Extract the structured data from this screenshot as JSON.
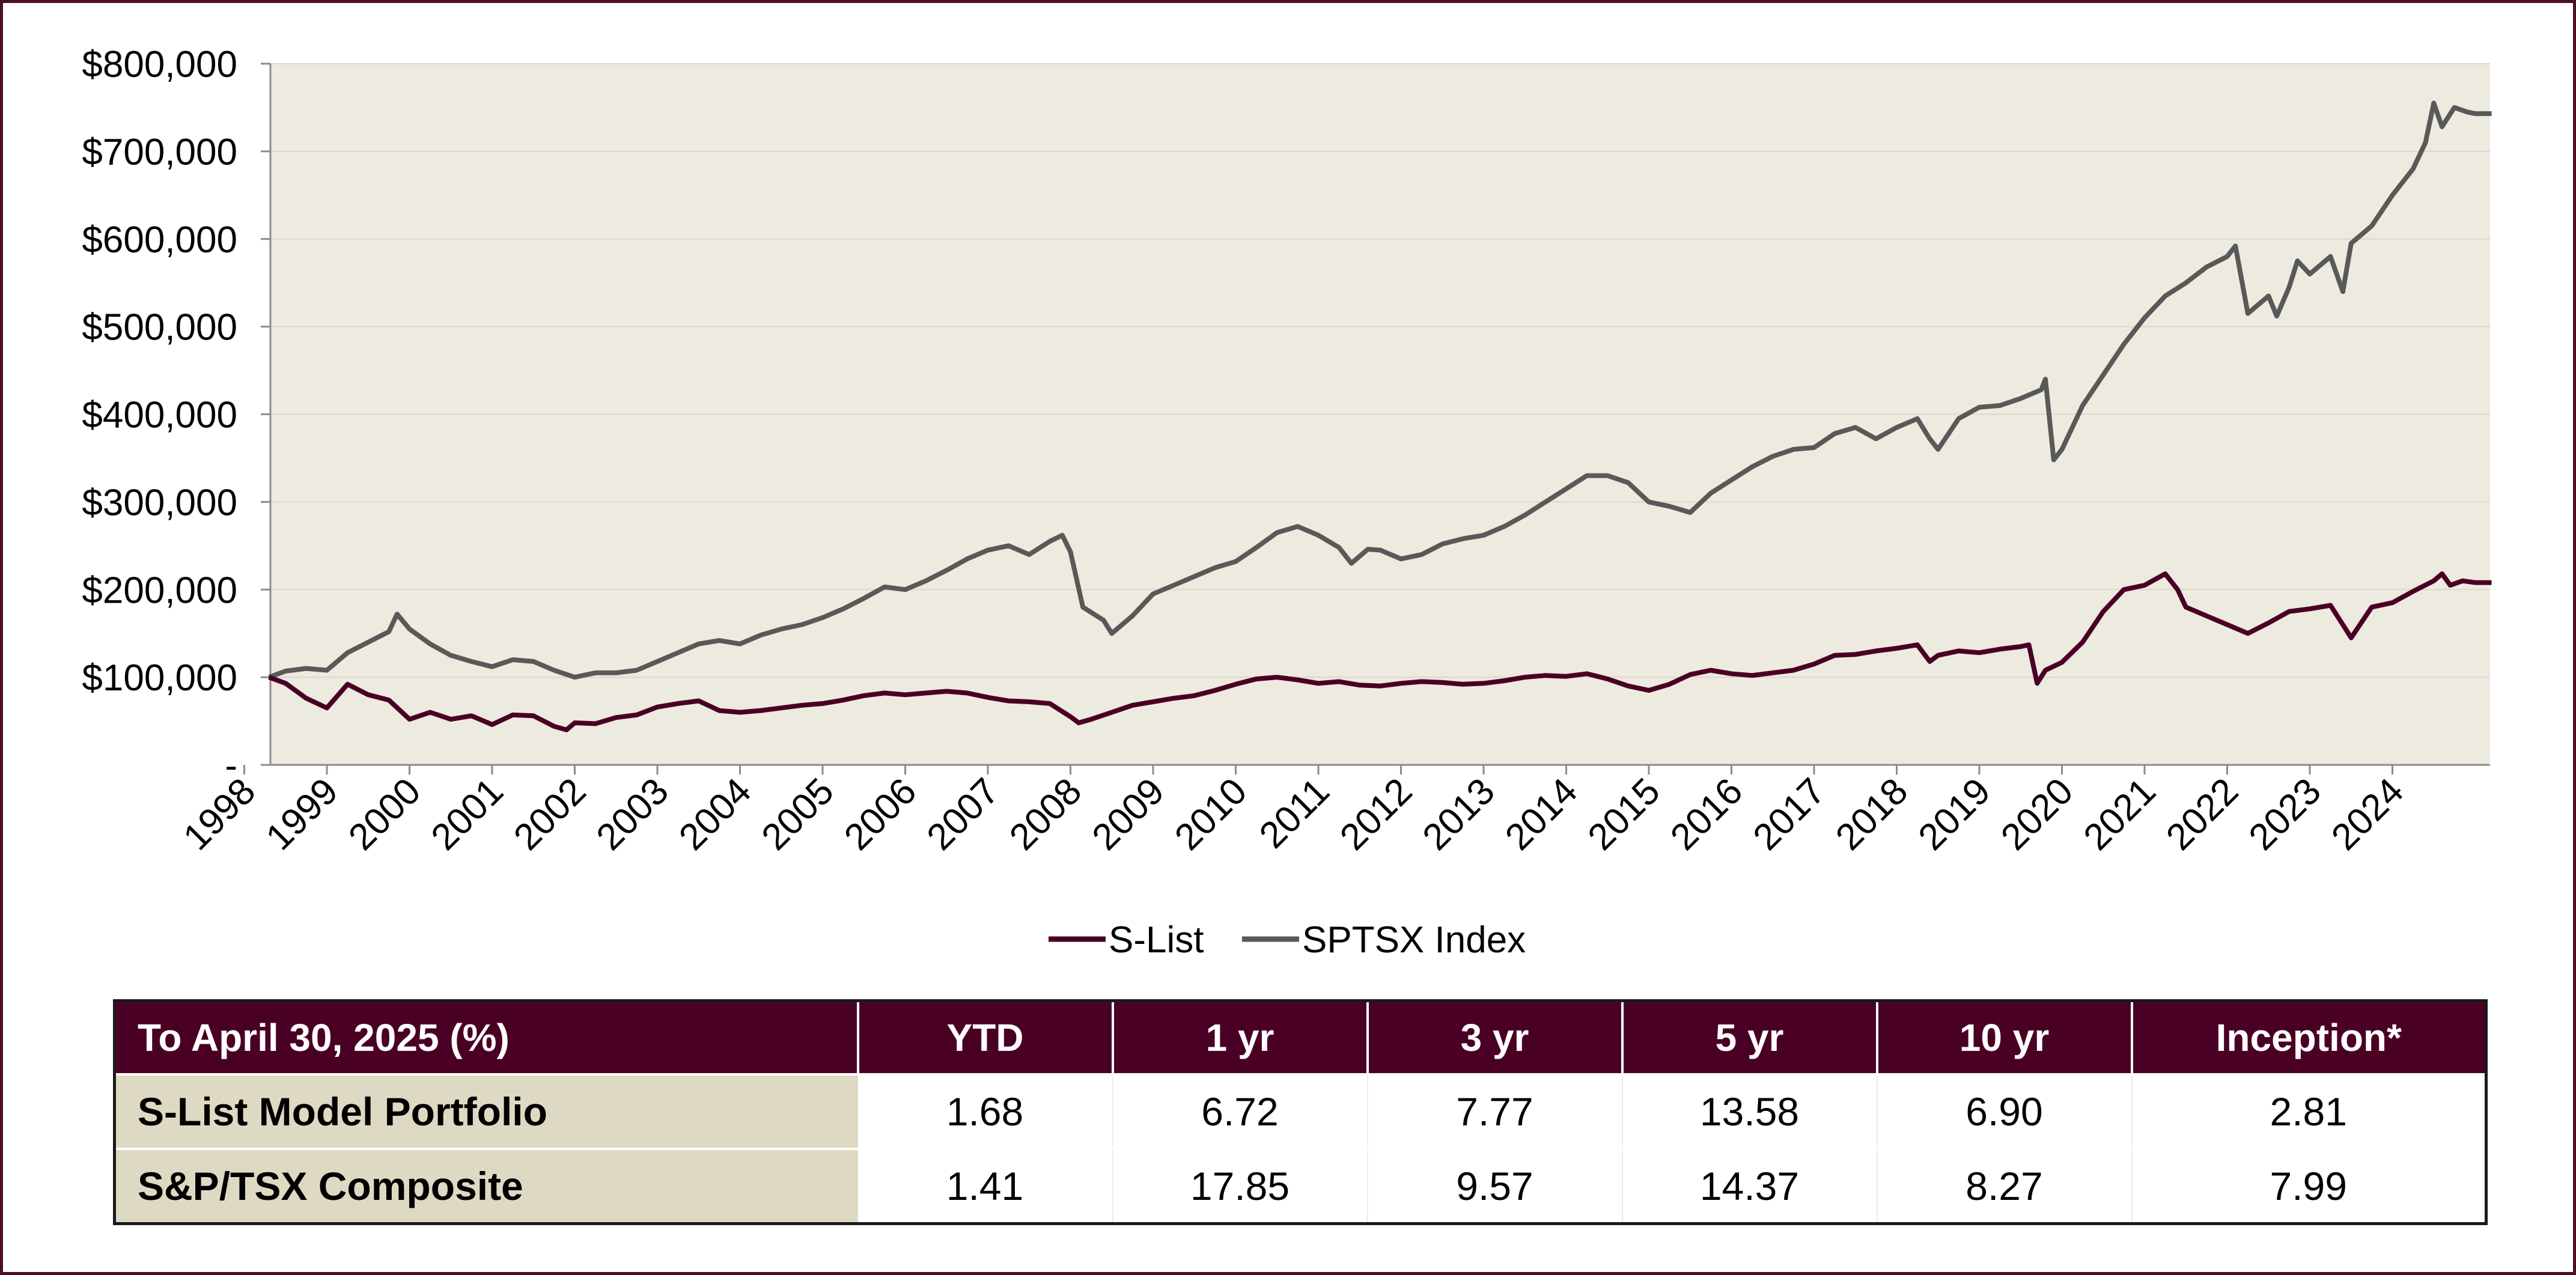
{
  "chart_data": {
    "type": "line",
    "title": "",
    "xlabel": "",
    "ylabel": "",
    "ylim": [
      0,
      800000
    ],
    "xlim": [
      1998.3,
      2024.7
    ],
    "y_ticks": [
      {
        "value": 0,
        "label": "-"
      },
      {
        "value": 100000,
        "label": "$100,000"
      },
      {
        "value": 200000,
        "label": "$200,000"
      },
      {
        "value": 300000,
        "label": "$300,000"
      },
      {
        "value": 400000,
        "label": "$400,000"
      },
      {
        "value": 500000,
        "label": "$500,000"
      },
      {
        "value": 600000,
        "label": "$600,000"
      },
      {
        "value": 700000,
        "label": "$700,000"
      },
      {
        "value": 800000,
        "label": "$800,000"
      }
    ],
    "x_ticks": [
      1998,
      1999,
      2000,
      2001,
      2002,
      2003,
      2004,
      2005,
      2006,
      2007,
      2008,
      2009,
      2010,
      2011,
      2012,
      2013,
      2014,
      2015,
      2016,
      2017,
      2018,
      2019,
      2020,
      2021,
      2022,
      2023,
      2024
    ],
    "grid": "horizontal",
    "plot_background": "#edeae0",
    "legend_position": "bottom-center",
    "series": [
      {
        "name": "S-List",
        "color": "#4a0024",
        "points": [
          [
            1998.3,
            100000
          ],
          [
            1998.5,
            93000
          ],
          [
            1998.75,
            76000
          ],
          [
            1999.0,
            65000
          ],
          [
            1999.25,
            92000
          ],
          [
            1999.5,
            80000
          ],
          [
            1999.75,
            74000
          ],
          [
            2000.0,
            52000
          ],
          [
            2000.25,
            60000
          ],
          [
            2000.5,
            52000
          ],
          [
            2000.75,
            56000
          ],
          [
            2001.0,
            46000
          ],
          [
            2001.25,
            57000
          ],
          [
            2001.5,
            56000
          ],
          [
            2001.75,
            44000
          ],
          [
            2001.9,
            40000
          ],
          [
            2002.0,
            48000
          ],
          [
            2002.25,
            47000
          ],
          [
            2002.5,
            54000
          ],
          [
            2002.75,
            57000
          ],
          [
            2003.0,
            66000
          ],
          [
            2003.25,
            70000
          ],
          [
            2003.5,
            73000
          ],
          [
            2003.75,
            62000
          ],
          [
            2004.0,
            60000
          ],
          [
            2004.25,
            62000
          ],
          [
            2004.5,
            65000
          ],
          [
            2004.75,
            68000
          ],
          [
            2005.0,
            70000
          ],
          [
            2005.25,
            74000
          ],
          [
            2005.5,
            79000
          ],
          [
            2005.75,
            82000
          ],
          [
            2006.0,
            80000
          ],
          [
            2006.25,
            82000
          ],
          [
            2006.5,
            84000
          ],
          [
            2006.75,
            82000
          ],
          [
            2007.0,
            77000
          ],
          [
            2007.25,
            73000
          ],
          [
            2007.5,
            72000
          ],
          [
            2007.75,
            70000
          ],
          [
            2008.0,
            55000
          ],
          [
            2008.1,
            48000
          ],
          [
            2008.25,
            52000
          ],
          [
            2008.5,
            60000
          ],
          [
            2008.75,
            68000
          ],
          [
            2009.0,
            72000
          ],
          [
            2009.25,
            76000
          ],
          [
            2009.5,
            79000
          ],
          [
            2009.75,
            85000
          ],
          [
            2010.0,
            92000
          ],
          [
            2010.25,
            98000
          ],
          [
            2010.5,
            100000
          ],
          [
            2010.75,
            97000
          ],
          [
            2011.0,
            93000
          ],
          [
            2011.25,
            95000
          ],
          [
            2011.5,
            91000
          ],
          [
            2011.75,
            90000
          ],
          [
            2012.0,
            93000
          ],
          [
            2012.25,
            95000
          ],
          [
            2012.5,
            94000
          ],
          [
            2012.75,
            92000
          ],
          [
            2013.0,
            93000
          ],
          [
            2013.25,
            96000
          ],
          [
            2013.5,
            100000
          ],
          [
            2013.75,
            102000
          ],
          [
            2014.0,
            101000
          ],
          [
            2014.25,
            104000
          ],
          [
            2014.5,
            98000
          ],
          [
            2014.75,
            90000
          ],
          [
            2015.0,
            85000
          ],
          [
            2015.25,
            92000
          ],
          [
            2015.5,
            103000
          ],
          [
            2015.75,
            108000
          ],
          [
            2016.0,
            104000
          ],
          [
            2016.25,
            102000
          ],
          [
            2016.5,
            105000
          ],
          [
            2016.75,
            108000
          ],
          [
            2017.0,
            115000
          ],
          [
            2017.25,
            125000
          ],
          [
            2017.5,
            126000
          ],
          [
            2017.75,
            130000
          ],
          [
            2018.0,
            133000
          ],
          [
            2018.25,
            137000
          ],
          [
            2018.4,
            118000
          ],
          [
            2018.5,
            125000
          ],
          [
            2018.75,
            130000
          ],
          [
            2019.0,
            128000
          ],
          [
            2019.25,
            132000
          ],
          [
            2019.5,
            135000
          ],
          [
            2019.6,
            137000
          ],
          [
            2019.7,
            93000
          ],
          [
            2019.8,
            108000
          ],
          [
            2020.0,
            117000
          ],
          [
            2020.25,
            140000
          ],
          [
            2020.5,
            175000
          ],
          [
            2020.75,
            200000
          ],
          [
            2021.0,
            205000
          ],
          [
            2021.25,
            218000
          ],
          [
            2021.4,
            200000
          ],
          [
            2021.5,
            180000
          ],
          [
            2021.75,
            170000
          ],
          [
            2022.0,
            160000
          ],
          [
            2022.25,
            150000
          ],
          [
            2022.5,
            162000
          ],
          [
            2022.75,
            175000
          ],
          [
            2023.0,
            178000
          ],
          [
            2023.25,
            182000
          ],
          [
            2023.4,
            160000
          ],
          [
            2023.5,
            145000
          ],
          [
            2023.75,
            180000
          ],
          [
            2024.0,
            185000
          ],
          [
            2024.25,
            198000
          ],
          [
            2024.5,
            210000
          ],
          [
            2024.6,
            218000
          ],
          [
            2024.7,
            205000
          ],
          [
            2024.85,
            210000
          ],
          [
            2025.0,
            208000
          ],
          [
            2025.2,
            208000
          ]
        ]
      },
      {
        "name": "SPTSX Index",
        "color": "#595959",
        "points": [
          [
            1998.3,
            100000
          ],
          [
            1998.5,
            107000
          ],
          [
            1998.75,
            110000
          ],
          [
            1999.0,
            108000
          ],
          [
            1999.25,
            128000
          ],
          [
            1999.5,
            140000
          ],
          [
            1999.75,
            152000
          ],
          [
            1999.85,
            172000
          ],
          [
            2000.0,
            155000
          ],
          [
            2000.25,
            138000
          ],
          [
            2000.5,
            125000
          ],
          [
            2000.75,
            118000
          ],
          [
            2001.0,
            112000
          ],
          [
            2001.25,
            120000
          ],
          [
            2001.5,
            118000
          ],
          [
            2001.75,
            108000
          ],
          [
            2002.0,
            100000
          ],
          [
            2002.25,
            105000
          ],
          [
            2002.5,
            105000
          ],
          [
            2002.75,
            108000
          ],
          [
            2003.0,
            118000
          ],
          [
            2003.25,
            128000
          ],
          [
            2003.5,
            138000
          ],
          [
            2003.75,
            142000
          ],
          [
            2004.0,
            138000
          ],
          [
            2004.25,
            148000
          ],
          [
            2004.5,
            155000
          ],
          [
            2004.75,
            160000
          ],
          [
            2005.0,
            168000
          ],
          [
            2005.25,
            178000
          ],
          [
            2005.5,
            190000
          ],
          [
            2005.75,
            203000
          ],
          [
            2006.0,
            200000
          ],
          [
            2006.25,
            210000
          ],
          [
            2006.5,
            222000
          ],
          [
            2006.75,
            235000
          ],
          [
            2007.0,
            245000
          ],
          [
            2007.25,
            250000
          ],
          [
            2007.5,
            240000
          ],
          [
            2007.75,
            255000
          ],
          [
            2007.9,
            262000
          ],
          [
            2008.0,
            243000
          ],
          [
            2008.15,
            180000
          ],
          [
            2008.4,
            165000
          ],
          [
            2008.5,
            150000
          ],
          [
            2008.75,
            170000
          ],
          [
            2009.0,
            195000
          ],
          [
            2009.25,
            205000
          ],
          [
            2009.5,
            215000
          ],
          [
            2009.75,
            225000
          ],
          [
            2010.0,
            232000
          ],
          [
            2010.25,
            248000
          ],
          [
            2010.5,
            265000
          ],
          [
            2010.75,
            272000
          ],
          [
            2011.0,
            262000
          ],
          [
            2011.25,
            248000
          ],
          [
            2011.4,
            230000
          ],
          [
            2011.6,
            246000
          ],
          [
            2011.75,
            245000
          ],
          [
            2012.0,
            235000
          ],
          [
            2012.25,
            240000
          ],
          [
            2012.5,
            252000
          ],
          [
            2012.75,
            258000
          ],
          [
            2013.0,
            262000
          ],
          [
            2013.25,
            272000
          ],
          [
            2013.5,
            285000
          ],
          [
            2013.75,
            300000
          ],
          [
            2014.0,
            315000
          ],
          [
            2014.25,
            330000
          ],
          [
            2014.5,
            330000
          ],
          [
            2014.75,
            322000
          ],
          [
            2015.0,
            300000
          ],
          [
            2015.25,
            295000
          ],
          [
            2015.5,
            288000
          ],
          [
            2015.75,
            310000
          ],
          [
            2016.0,
            325000
          ],
          [
            2016.25,
            340000
          ],
          [
            2016.5,
            352000
          ],
          [
            2016.75,
            360000
          ],
          [
            2017.0,
            362000
          ],
          [
            2017.25,
            378000
          ],
          [
            2017.5,
            385000
          ],
          [
            2017.75,
            372000
          ],
          [
            2018.0,
            385000
          ],
          [
            2018.25,
            395000
          ],
          [
            2018.4,
            372000
          ],
          [
            2018.5,
            360000
          ],
          [
            2018.75,
            395000
          ],
          [
            2019.0,
            408000
          ],
          [
            2019.25,
            410000
          ],
          [
            2019.5,
            418000
          ],
          [
            2019.75,
            428000
          ],
          [
            2019.8,
            440000
          ],
          [
            2019.9,
            348000
          ],
          [
            2020.0,
            360000
          ],
          [
            2020.25,
            410000
          ],
          [
            2020.5,
            445000
          ],
          [
            2020.75,
            480000
          ],
          [
            2021.0,
            510000
          ],
          [
            2021.25,
            535000
          ],
          [
            2021.5,
            550000
          ],
          [
            2021.75,
            568000
          ],
          [
            2022.0,
            580000
          ],
          [
            2022.1,
            592000
          ],
          [
            2022.25,
            515000
          ],
          [
            2022.5,
            535000
          ],
          [
            2022.6,
            512000
          ],
          [
            2022.75,
            545000
          ],
          [
            2022.85,
            575000
          ],
          [
            2023.0,
            560000
          ],
          [
            2023.25,
            580000
          ],
          [
            2023.4,
            540000
          ],
          [
            2023.5,
            595000
          ],
          [
            2023.75,
            615000
          ],
          [
            2024.0,
            650000
          ],
          [
            2024.25,
            680000
          ],
          [
            2024.4,
            710000
          ],
          [
            2024.5,
            755000
          ],
          [
            2024.6,
            728000
          ],
          [
            2024.75,
            750000
          ],
          [
            2024.9,
            745000
          ],
          [
            2025.0,
            743000
          ],
          [
            2025.2,
            743000
          ]
        ]
      }
    ]
  },
  "table": {
    "headers": [
      "To April 30, 2025 (%)",
      "YTD",
      "1 yr",
      "3 yr",
      "5 yr",
      "10 yr",
      "Inception*"
    ],
    "rows": [
      {
        "name": "S-List Model Portfolio",
        "values": [
          "1.68",
          "6.72",
          "7.77",
          "13.58",
          "6.90",
          "2.81"
        ]
      },
      {
        "name": "S&P/TSX Composite",
        "values": [
          "1.41",
          "17.85",
          "9.57",
          "14.37",
          "8.27",
          "7.99"
        ]
      }
    ]
  },
  "colors": {
    "frame_border": "#4a0f23",
    "header_bg": "#4a0024",
    "row_label_bg": "#ddd9c3"
  }
}
